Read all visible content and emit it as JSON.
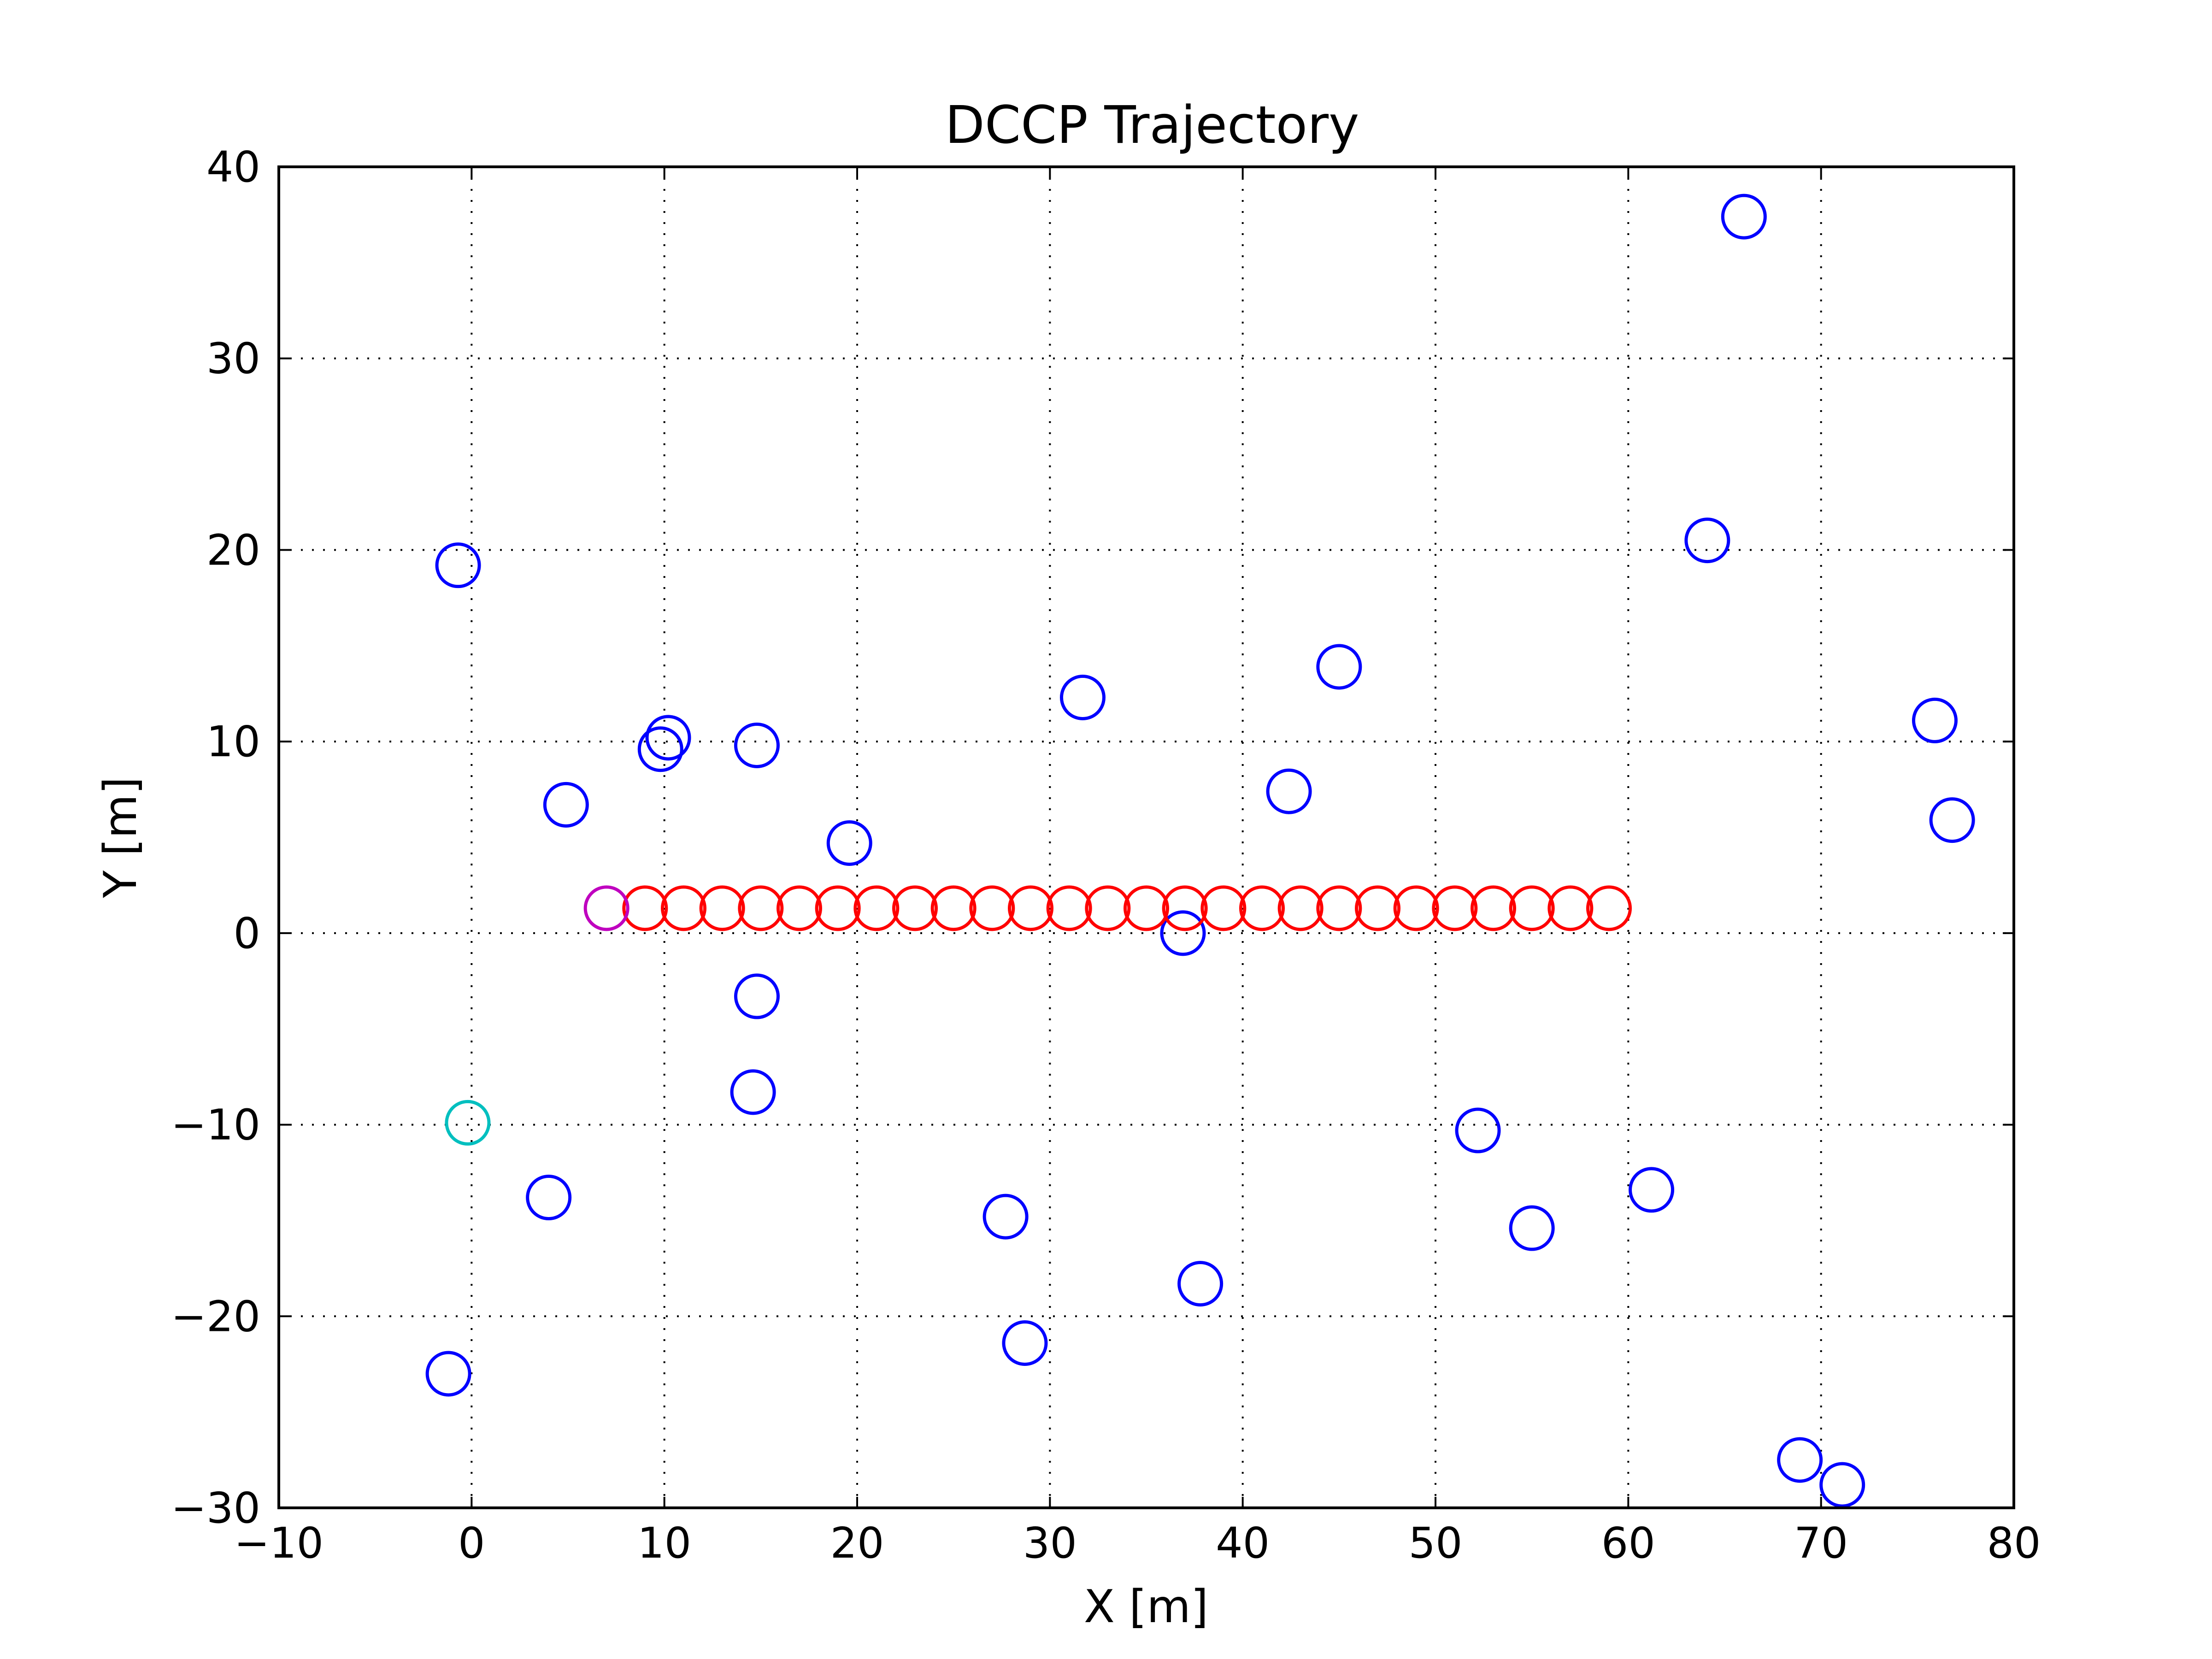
{
  "chart_data": {
    "type": "scatter",
    "title": "DCCP Trajectory",
    "xlabel": "X [m]",
    "ylabel": "Y [m]",
    "xlim": [
      -10,
      80
    ],
    "ylim": [
      -30,
      40
    ],
    "xticks": [
      -10,
      0,
      10,
      20,
      30,
      40,
      50,
      60,
      70,
      80
    ],
    "yticks": [
      -30,
      -20,
      -10,
      0,
      10,
      20,
      30,
      40
    ],
    "xtick_labels": [
      "−10",
      "0",
      "10",
      "20",
      "30",
      "40",
      "50",
      "60",
      "70",
      "80"
    ],
    "ytick_labels": [
      "−30",
      "−20",
      "−10",
      "0",
      "10",
      "20",
      "30",
      "40"
    ],
    "grid": true,
    "marker": "hollow-circle",
    "series": [
      {
        "color": "#0000ff",
        "points": [
          [
            -0.7,
            19.2
          ],
          [
            10.2,
            10.2
          ],
          [
            9.8,
            9.6
          ],
          [
            4.9,
            6.7
          ],
          [
            14.8,
            9.8
          ],
          [
            19.6,
            4.7
          ],
          [
            31.7,
            12.3
          ],
          [
            42.4,
            7.4
          ],
          [
            45.0,
            13.9
          ],
          [
            64.1,
            20.5
          ],
          [
            66.0,
            37.4
          ],
          [
            75.9,
            11.1
          ],
          [
            76.8,
            5.9
          ],
          [
            36.9,
            0.0
          ],
          [
            14.8,
            -3.3
          ],
          [
            14.6,
            -8.3
          ],
          [
            4.0,
            -13.8
          ],
          [
            27.7,
            -14.8
          ],
          [
            37.8,
            -18.3
          ],
          [
            28.7,
            -21.4
          ],
          [
            52.2,
            -10.3
          ],
          [
            55.0,
            -15.4
          ],
          [
            61.2,
            -13.4
          ],
          [
            -1.2,
            -23.0
          ],
          [
            68.9,
            -27.5
          ],
          [
            71.1,
            -28.8
          ]
        ]
      },
      {
        "color": "#ff0000",
        "points": [
          [
            9,
            1.3
          ],
          [
            11,
            1.3
          ],
          [
            13,
            1.3
          ],
          [
            15,
            1.3
          ],
          [
            17,
            1.3
          ],
          [
            19,
            1.3
          ],
          [
            21,
            1.3
          ],
          [
            23,
            1.3
          ],
          [
            25,
            1.3
          ],
          [
            27,
            1.3
          ],
          [
            29,
            1.3
          ],
          [
            31,
            1.3
          ],
          [
            33,
            1.3
          ],
          [
            35,
            1.3
          ],
          [
            37,
            1.3
          ],
          [
            39,
            1.3
          ],
          [
            41,
            1.3
          ],
          [
            43,
            1.3
          ],
          [
            45,
            1.3
          ],
          [
            47,
            1.3
          ],
          [
            49,
            1.3
          ],
          [
            51,
            1.3
          ],
          [
            53,
            1.3
          ],
          [
            55,
            1.3
          ],
          [
            57,
            1.3
          ],
          [
            59,
            1.3
          ]
        ]
      },
      {
        "color": "#bf00bf",
        "points": [
          [
            7,
            1.3
          ]
        ]
      },
      {
        "color": "#00bfbf",
        "points": [
          [
            -0.2,
            -9.9
          ]
        ]
      }
    ]
  }
}
